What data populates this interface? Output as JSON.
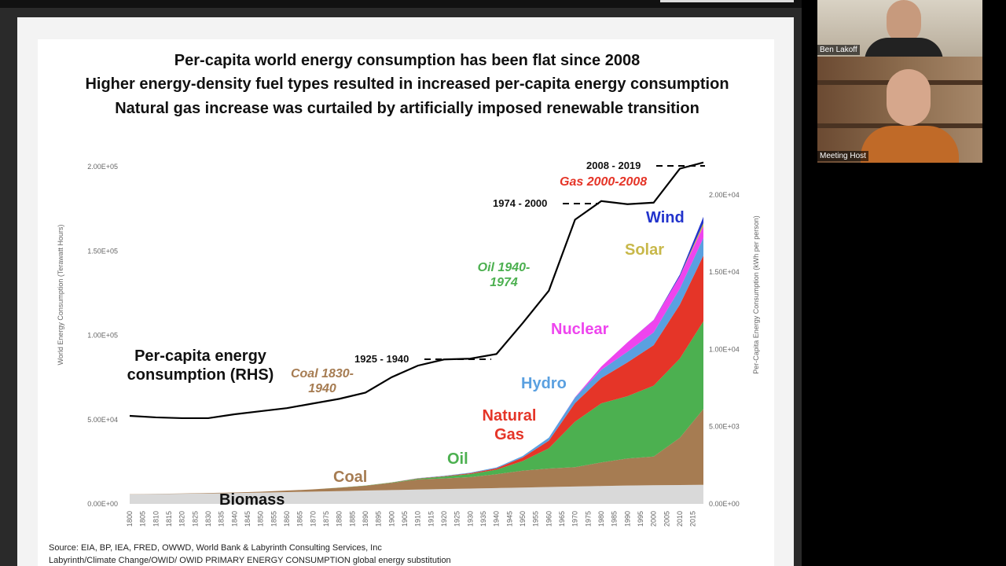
{
  "meeting": {
    "participants": [
      {
        "name": "Ben Lakoff"
      },
      {
        "name": "Meeting Host"
      }
    ]
  },
  "chart_data": {
    "type": "stacked-area",
    "title": [
      "Per-capita world energy consumption has been flat since 2008",
      "Higher energy-density fuel types resulted in increased per-capita energy consumption",
      "Natural gas increase was curtailed by artificially imposed renewable transition"
    ],
    "y_label": "World Energy Consumption (Terawatt Hours)",
    "y2_label": "Per-Capita Energy Consumption (kWh per person)",
    "x": [
      1800,
      1810,
      1820,
      1830,
      1840,
      1850,
      1860,
      1870,
      1880,
      1890,
      1900,
      1910,
      1920,
      1930,
      1940,
      1950,
      1960,
      1970,
      1980,
      1990,
      2000,
      2010,
      2019
    ],
    "xlim": [
      1800,
      2019
    ],
    "xticks": [
      1800,
      1805,
      1810,
      1815,
      1820,
      1825,
      1830,
      1835,
      1840,
      1845,
      1850,
      1855,
      1860,
      1865,
      1870,
      1875,
      1880,
      1885,
      1890,
      1895,
      1900,
      1905,
      1910,
      1915,
      1920,
      1925,
      1930,
      1935,
      1940,
      1945,
      1950,
      1955,
      1960,
      1965,
      1970,
      1975,
      1980,
      1985,
      1990,
      1995,
      2000,
      2005,
      2010,
      2015
    ],
    "ylim": [
      0,
      205600
    ],
    "yticks": [
      {
        "value": 0,
        "label": "0.00E+00"
      },
      {
        "value": 50000,
        "label": "5.00E+04"
      },
      {
        "value": 100000,
        "label": "1.00E+05"
      },
      {
        "value": 150000,
        "label": "1.50E+05"
      },
      {
        "value": 200000,
        "label": "2.00E+05"
      }
    ],
    "y2lim": [
      0,
      22440
    ],
    "y2ticks": [
      {
        "value": 0,
        "label": "0.00E+00"
      },
      {
        "value": 5000,
        "label": "5.00E+03"
      },
      {
        "value": 10000,
        "label": "1.00E+04"
      },
      {
        "value": 15000,
        "label": "1.50E+04"
      },
      {
        "value": 20000,
        "label": "2.00E+04"
      }
    ],
    "series": [
      {
        "name": "Biomass",
        "color": "#d9d9d9",
        "values": [
          5600,
          5800,
          6000,
          6200,
          6400,
          6700,
          7000,
          7300,
          7600,
          7900,
          8200,
          8500,
          8800,
          9100,
          9400,
          9700,
          10000,
          10300,
          10600,
          10900,
          11100,
          11200,
          11300
        ]
      },
      {
        "name": "Coal",
        "color": "#a67c52",
        "values": [
          100,
          130,
          170,
          250,
          350,
          550,
          900,
          1300,
          2000,
          2900,
          4300,
          6000,
          6300,
          6800,
          8200,
          10000,
          11000,
          11500,
          14000,
          16000,
          17000,
          28000,
          45000
        ]
      },
      {
        "name": "Oil",
        "color": "#4cb050",
        "values": [
          0,
          0,
          0,
          0,
          0,
          0,
          0,
          5,
          50,
          100,
          200,
          500,
          1100,
          1800,
          2700,
          5700,
          12000,
          27000,
          35000,
          37000,
          42000,
          47000,
          52000
        ]
      },
      {
        "name": "Natural Gas",
        "color": "#e53528",
        "values": [
          0,
          0,
          0,
          0,
          0,
          0,
          0,
          0,
          10,
          20,
          60,
          150,
          250,
          500,
          800,
          2100,
          4500,
          11000,
          15000,
          20000,
          24000,
          32000,
          39000
        ]
      },
      {
        "name": "Hydro",
        "color": "#5aa0e0",
        "values": [
          0,
          0,
          0,
          0,
          0,
          0,
          0,
          0,
          0,
          0,
          30,
          100,
          200,
          350,
          500,
          900,
          1800,
          3300,
          4900,
          6300,
          7600,
          9400,
          10500
        ]
      },
      {
        "name": "Nuclear",
        "color": "#ee44ee",
        "values": [
          0,
          0,
          0,
          0,
          0,
          0,
          0,
          0,
          0,
          0,
          0,
          0,
          0,
          0,
          0,
          0,
          0,
          200,
          1900,
          5600,
          7300,
          7400,
          7000
        ]
      },
      {
        "name": "Solar",
        "color": "#c8b84a",
        "values": [
          0,
          0,
          0,
          0,
          0,
          0,
          0,
          0,
          0,
          0,
          0,
          0,
          0,
          0,
          0,
          0,
          0,
          0,
          0,
          0,
          3,
          90,
          1800
        ]
      },
      {
        "name": "Wind",
        "color": "#2233cc",
        "values": [
          0,
          0,
          0,
          0,
          0,
          0,
          0,
          0,
          0,
          0,
          0,
          0,
          0,
          0,
          0,
          0,
          0,
          0,
          0,
          0,
          80,
          900,
          3700
        ]
      },
      {
        "name": "Per-capita energy consumption (RHS)",
        "color": "#000000",
        "axis": "y2",
        "values": [
          5700,
          5600,
          5550,
          5550,
          5800,
          6000,
          6200,
          6500,
          6800,
          7200,
          8200,
          8950,
          9350,
          9400,
          9700,
          11700,
          13800,
          18400,
          19600,
          19400,
          19500,
          21700,
          22100
        ]
      }
    ],
    "annotations": [
      "Coal 1830-1940",
      "Oil 1940-1974",
      "1925 - 1940",
      "1974 - 2000",
      "2008 - 2019",
      "Gas 2000-2008"
    ],
    "source": [
      "Source: EIA, BP, IEA, FRED, OWWD, World Bank & Labyrinth Consulting Services, Inc",
      "Labyrinth/Climate Change/OWID/ OWID PRIMARY ENERGY CONSUMPTION  global energy substitution"
    ]
  }
}
